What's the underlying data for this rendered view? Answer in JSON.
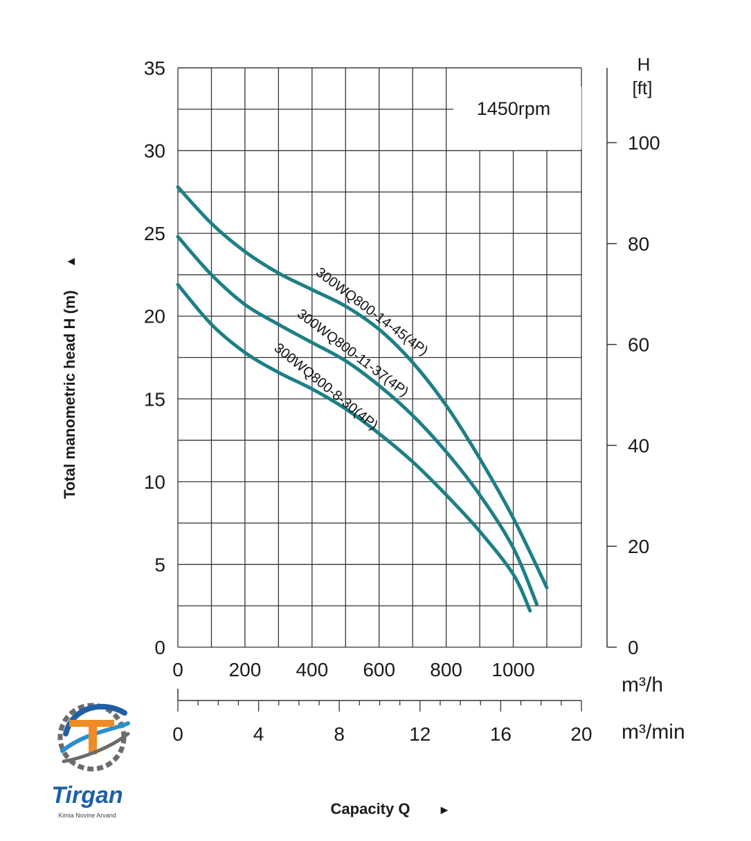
{
  "chart_data": {
    "type": "line",
    "annotation": "1450rpm",
    "ylabel": "Total manometric head H (m)",
    "ylabel_arrow": "▲",
    "xlabel": "Capacity Q",
    "xlabel_arrow": "►",
    "x_unit": "m³/h",
    "x_unit_secondary": "m³/min",
    "y_unit_secondary_top": "H",
    "y_unit_secondary_bottom": "[ft]",
    "xlim": [
      0,
      1200
    ],
    "ylim": [
      0,
      35
    ],
    "x_ticks": [
      0,
      200,
      400,
      600,
      800,
      1000
    ],
    "x_ticks_secondary": [
      0,
      4,
      8,
      12,
      16,
      20
    ],
    "y_ticks": [
      0,
      5,
      10,
      15,
      20,
      25,
      30,
      35
    ],
    "y_ticks_secondary": [
      0,
      20,
      40,
      60,
      80,
      100
    ],
    "grid": true,
    "series": [
      {
        "name": "300WQ800-14-45(4P)",
        "color": "#1e7f86",
        "x": [
          0,
          100,
          200,
          300,
          400,
          500,
          600,
          700,
          800,
          900,
          1000,
          1100
        ],
        "y": [
          27.8,
          25.6,
          23.9,
          22.6,
          21.6,
          20.6,
          19.2,
          17.2,
          14.6,
          11.4,
          7.8,
          3.6
        ]
      },
      {
        "name": "300WQ800-11-37(4P)",
        "color": "#1e7f86",
        "x": [
          0,
          100,
          200,
          300,
          400,
          500,
          600,
          700,
          800,
          900,
          1000,
          1070
        ],
        "y": [
          24.8,
          22.5,
          20.7,
          19.5,
          18.4,
          17.3,
          15.8,
          14.0,
          11.8,
          9.2,
          6.0,
          2.6
        ]
      },
      {
        "name": "300WQ800-8-30(4P)",
        "color": "#1e7f86",
        "x": [
          0,
          100,
          200,
          300,
          400,
          500,
          600,
          700,
          800,
          900,
          1000,
          1050
        ],
        "y": [
          21.9,
          19.5,
          17.8,
          16.6,
          15.6,
          14.4,
          12.9,
          11.2,
          9.2,
          7.0,
          4.4,
          2.2
        ]
      }
    ]
  },
  "logo": {
    "name": "Tirgan",
    "tagline": "Kimia Novine Arvand",
    "primary_color": "#1f5fa6",
    "accent_color": "#f08a24",
    "gear_color": "#6b6b6b",
    "icon": "tirgan-gear-logo-icon"
  }
}
